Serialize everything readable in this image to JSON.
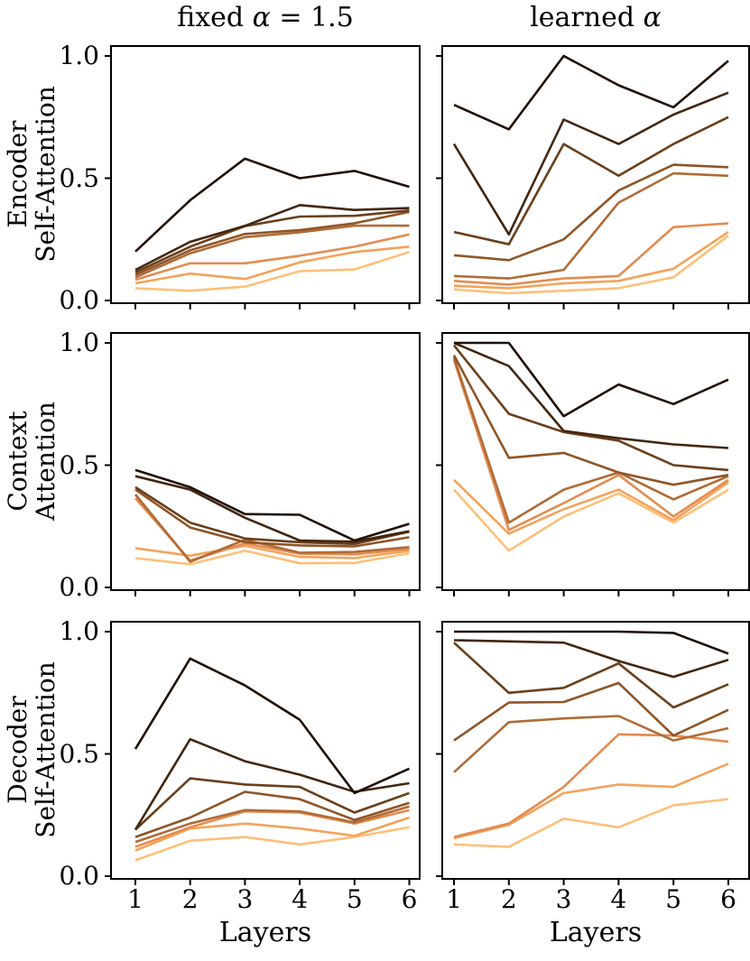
{
  "figure": {
    "col_titles": [
      {
        "prefix": "fixed ",
        "alpha": "α",
        "suffix": " = 1.5"
      },
      {
        "prefix": "learned ",
        "alpha": "α",
        "suffix": ""
      }
    ],
    "row_labels": [
      {
        "line1": "Encoder",
        "line2": "Self-Attention"
      },
      {
        "line1": "Context",
        "line2": "Attention"
      },
      {
        "line1": "Decoder",
        "line2": "Self-Attention"
      }
    ],
    "x_axis_label": "Layers",
    "x_tick_labels": [
      "1",
      "2",
      "3",
      "4",
      "5",
      "6"
    ],
    "y_tick_labels": [
      "1.0",
      "0.5",
      "0.0"
    ],
    "y_tick_values": [
      1.0,
      0.5,
      0.0
    ],
    "background": "#ffffff",
    "axis_color": "#000000",
    "line_color_palette": [
      "#200f03",
      "#42260f",
      "#6a3f1a",
      "#8f5526",
      "#b06b36",
      "#e28c50",
      "#f4a25a",
      "#ffbf79"
    ]
  },
  "chart_data": [
    {
      "type": "line",
      "column": "fixed α = 1.5",
      "row": "Encoder Self-Attention",
      "x": [
        1,
        2,
        3,
        4,
        5,
        6
      ],
      "xlabel": "Layers",
      "ylim": [
        0.0,
        1.0
      ],
      "grid": false,
      "legend": "none",
      "series": [
        {
          "name": "shade-1-darkest",
          "values": [
            0.2,
            0.41,
            0.58,
            0.5,
            0.53,
            0.465
          ]
        },
        {
          "name": "shade-2",
          "values": [
            0.125,
            0.24,
            0.305,
            0.39,
            0.37,
            0.378
          ]
        },
        {
          "name": "shade-3",
          "values": [
            0.115,
            0.22,
            0.304,
            0.343,
            0.346,
            0.368
          ]
        },
        {
          "name": "shade-4",
          "values": [
            0.105,
            0.205,
            0.272,
            0.288,
            0.316,
            0.362
          ]
        },
        {
          "name": "shade-5",
          "values": [
            0.095,
            0.193,
            0.259,
            0.279,
            0.306,
            0.306
          ]
        },
        {
          "name": "shade-6",
          "values": [
            0.085,
            0.152,
            0.152,
            0.183,
            0.22,
            0.27
          ]
        },
        {
          "name": "shade-7",
          "values": [
            0.07,
            0.11,
            0.088,
            0.156,
            0.198,
            0.22
          ]
        },
        {
          "name": "shade-8-lightest",
          "values": [
            0.05,
            0.04,
            0.057,
            0.12,
            0.127,
            0.198
          ]
        }
      ]
    },
    {
      "type": "line",
      "column": "learned α",
      "row": "Encoder Self-Attention",
      "x": [
        1,
        2,
        3,
        4,
        5,
        6
      ],
      "xlabel": "Layers",
      "ylim": [
        0.0,
        1.0
      ],
      "grid": false,
      "legend": "none",
      "series": [
        {
          "name": "shade-1-darkest",
          "values": [
            0.8,
            0.7,
            1.0,
            0.88,
            0.79,
            0.98
          ]
        },
        {
          "name": "shade-2",
          "values": [
            0.64,
            0.27,
            0.74,
            0.64,
            0.76,
            0.85
          ]
        },
        {
          "name": "shade-3",
          "values": [
            0.28,
            0.23,
            0.64,
            0.51,
            0.64,
            0.75
          ]
        },
        {
          "name": "shade-4",
          "values": [
            0.185,
            0.165,
            0.25,
            0.45,
            0.555,
            0.545
          ]
        },
        {
          "name": "shade-5",
          "values": [
            0.1,
            0.09,
            0.125,
            0.4,
            0.52,
            0.51
          ]
        },
        {
          "name": "shade-6",
          "values": [
            0.08,
            0.065,
            0.09,
            0.1,
            0.3,
            0.315
          ]
        },
        {
          "name": "shade-7",
          "values": [
            0.06,
            0.05,
            0.07,
            0.08,
            0.13,
            0.28
          ]
        },
        {
          "name": "shade-8-lightest",
          "values": [
            0.045,
            0.03,
            0.04,
            0.05,
            0.095,
            0.265
          ]
        }
      ]
    },
    {
      "type": "line",
      "column": "fixed α = 1.5",
      "row": "Context Attention",
      "x": [
        1,
        2,
        3,
        4,
        5,
        6
      ],
      "xlabel": "Layers",
      "ylim": [
        0.0,
        1.0
      ],
      "grid": false,
      "legend": "none",
      "series": [
        {
          "name": "shade-1-darkest",
          "values": [
            0.48,
            0.41,
            0.3,
            0.297,
            0.192,
            0.26
          ]
        },
        {
          "name": "shade-2",
          "values": [
            0.455,
            0.4,
            0.285,
            0.192,
            0.187,
            0.23
          ]
        },
        {
          "name": "shade-3",
          "values": [
            0.41,
            0.265,
            0.2,
            0.185,
            0.178,
            0.228
          ]
        },
        {
          "name": "shade-4",
          "values": [
            0.4,
            0.245,
            0.185,
            0.172,
            0.168,
            0.205
          ]
        },
        {
          "name": "shade-5",
          "values": [
            0.38,
            0.105,
            0.195,
            0.142,
            0.145,
            0.165
          ]
        },
        {
          "name": "shade-6",
          "values": [
            0.365,
            0.11,
            0.18,
            0.138,
            0.135,
            0.158
          ]
        },
        {
          "name": "shade-7",
          "values": [
            0.16,
            0.13,
            0.17,
            0.125,
            0.12,
            0.15
          ]
        },
        {
          "name": "shade-8-lightest",
          "values": [
            0.12,
            0.095,
            0.15,
            0.099,
            0.1,
            0.14
          ]
        }
      ]
    },
    {
      "type": "line",
      "column": "learned α",
      "row": "Context Attention",
      "x": [
        1,
        2,
        3,
        4,
        5,
        6
      ],
      "xlabel": "Layers",
      "ylim": [
        0.0,
        1.0
      ],
      "grid": false,
      "legend": "none",
      "series": [
        {
          "name": "shade-1-darkest",
          "values": [
            1.0,
            1.0,
            0.7,
            0.83,
            0.75,
            0.85
          ]
        },
        {
          "name": "shade-2",
          "values": [
            1.0,
            0.905,
            0.64,
            0.61,
            0.585,
            0.57
          ]
        },
        {
          "name": "shade-3",
          "values": [
            0.99,
            0.71,
            0.635,
            0.6,
            0.5,
            0.48
          ]
        },
        {
          "name": "shade-4",
          "values": [
            0.95,
            0.53,
            0.55,
            0.47,
            0.42,
            0.46
          ]
        },
        {
          "name": "shade-5",
          "values": [
            0.94,
            0.265,
            0.4,
            0.47,
            0.36,
            0.455
          ]
        },
        {
          "name": "shade-6",
          "values": [
            0.93,
            0.235,
            0.345,
            0.46,
            0.29,
            0.44
          ]
        },
        {
          "name": "shade-7",
          "values": [
            0.44,
            0.22,
            0.32,
            0.4,
            0.275,
            0.43
          ]
        },
        {
          "name": "shade-8-lightest",
          "values": [
            0.4,
            0.15,
            0.29,
            0.385,
            0.265,
            0.4
          ]
        }
      ]
    },
    {
      "type": "line",
      "column": "fixed α = 1.5",
      "row": "Decoder Self-Attention",
      "x": [
        1,
        2,
        3,
        4,
        5,
        6
      ],
      "xlabel": "Layers",
      "ylim": [
        0.0,
        1.0
      ],
      "grid": false,
      "legend": "none",
      "series": [
        {
          "name": "shade-1-darkest",
          "values": [
            0.52,
            0.89,
            0.78,
            0.64,
            0.34,
            0.44
          ]
        },
        {
          "name": "shade-2",
          "values": [
            0.19,
            0.56,
            0.47,
            0.415,
            0.345,
            0.38
          ]
        },
        {
          "name": "shade-3",
          "values": [
            0.19,
            0.4,
            0.375,
            0.365,
            0.26,
            0.34
          ]
        },
        {
          "name": "shade-4",
          "values": [
            0.16,
            0.24,
            0.345,
            0.315,
            0.23,
            0.3
          ]
        },
        {
          "name": "shade-5",
          "values": [
            0.14,
            0.215,
            0.27,
            0.265,
            0.22,
            0.285
          ]
        },
        {
          "name": "shade-6",
          "values": [
            0.12,
            0.2,
            0.265,
            0.26,
            0.215,
            0.27
          ]
        },
        {
          "name": "shade-7",
          "values": [
            0.105,
            0.195,
            0.215,
            0.195,
            0.165,
            0.24
          ]
        },
        {
          "name": "shade-8-lightest",
          "values": [
            0.065,
            0.145,
            0.16,
            0.13,
            0.16,
            0.2
          ]
        }
      ]
    },
    {
      "type": "line",
      "column": "learned α",
      "row": "Decoder Self-Attention",
      "x": [
        1,
        2,
        3,
        4,
        5,
        6
      ],
      "xlabel": "Layers",
      "ylim": [
        0.0,
        1.0
      ],
      "grid": false,
      "legend": "none",
      "series": [
        {
          "name": "shade-1-darkest",
          "values": [
            1.0,
            1.0,
            1.0,
            1.0,
            0.995,
            0.91
          ]
        },
        {
          "name": "shade-2",
          "values": [
            0.965,
            0.96,
            0.955,
            0.88,
            0.815,
            0.885
          ]
        },
        {
          "name": "shade-3",
          "values": [
            0.955,
            0.75,
            0.77,
            0.87,
            0.69,
            0.785
          ]
        },
        {
          "name": "shade-4",
          "values": [
            0.555,
            0.71,
            0.712,
            0.79,
            0.575,
            0.68
          ]
        },
        {
          "name": "shade-5",
          "values": [
            0.425,
            0.63,
            0.645,
            0.655,
            0.555,
            0.605
          ]
        },
        {
          "name": "shade-6",
          "values": [
            0.16,
            0.215,
            0.365,
            0.58,
            0.575,
            0.55
          ]
        },
        {
          "name": "shade-7",
          "values": [
            0.155,
            0.21,
            0.34,
            0.375,
            0.365,
            0.46
          ]
        },
        {
          "name": "shade-8-lightest",
          "values": [
            0.13,
            0.12,
            0.235,
            0.2,
            0.29,
            0.315
          ]
        }
      ]
    }
  ]
}
